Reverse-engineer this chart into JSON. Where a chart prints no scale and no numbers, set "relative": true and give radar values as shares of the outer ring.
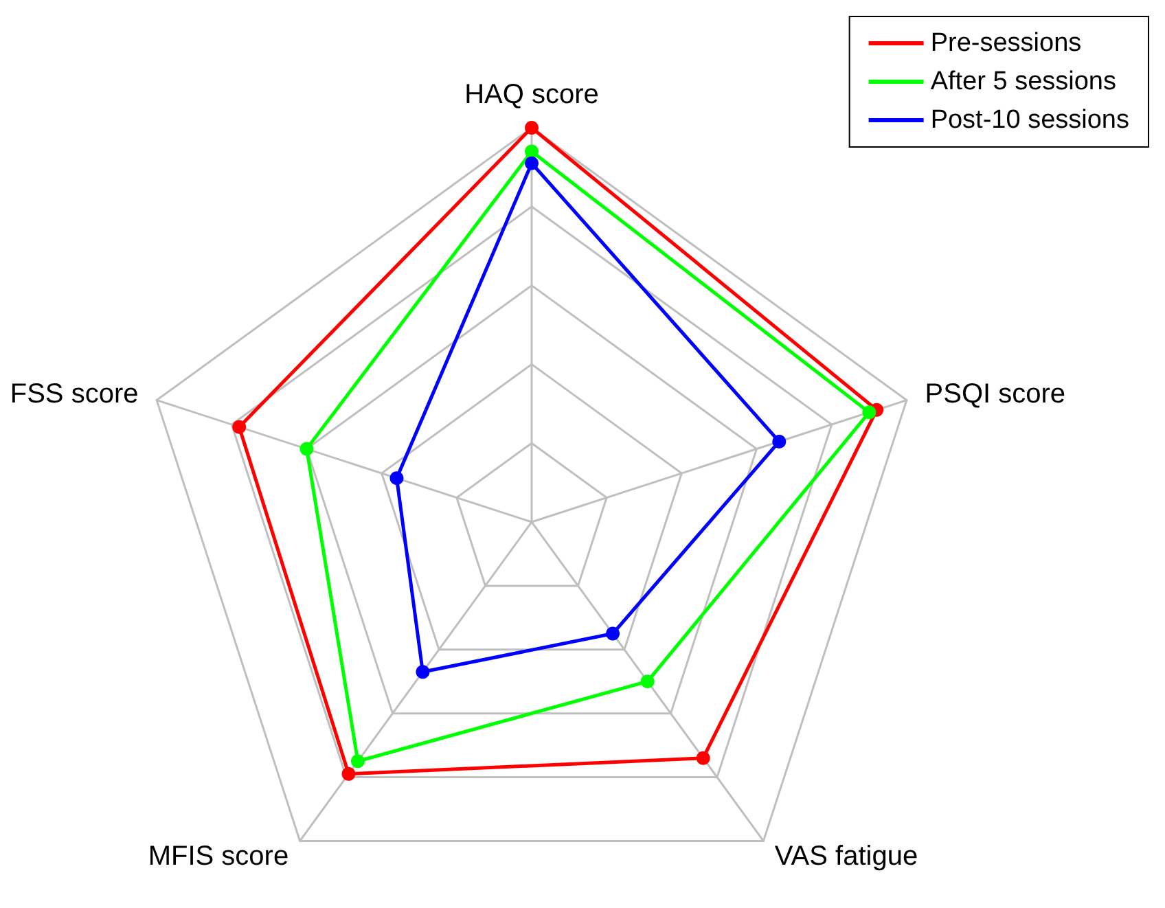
{
  "chart_data": {
    "type": "radar",
    "relative": true,
    "categories": [
      "HAQ score",
      "PSQI score",
      "VAS fatigue",
      "MFIS score",
      "FSS score"
    ],
    "legend": "top right",
    "marker": "circle",
    "line_style": "solid",
    "grid": true,
    "series": [
      {
        "name": "Pre-sessions",
        "color": "#ff0000",
        "values": [
          1.0,
          0.92,
          0.74,
          0.79,
          0.78
        ]
      },
      {
        "name": "After 5 sessions",
        "color": "#00ff00",
        "values": [
          0.94,
          0.9,
          0.5,
          0.75,
          0.6
        ]
      },
      {
        "name": "Post-10 sessions",
        "color": "#0000ff",
        "values": [
          0.91,
          0.66,
          0.35,
          0.47,
          0.36
        ]
      }
    ]
  }
}
